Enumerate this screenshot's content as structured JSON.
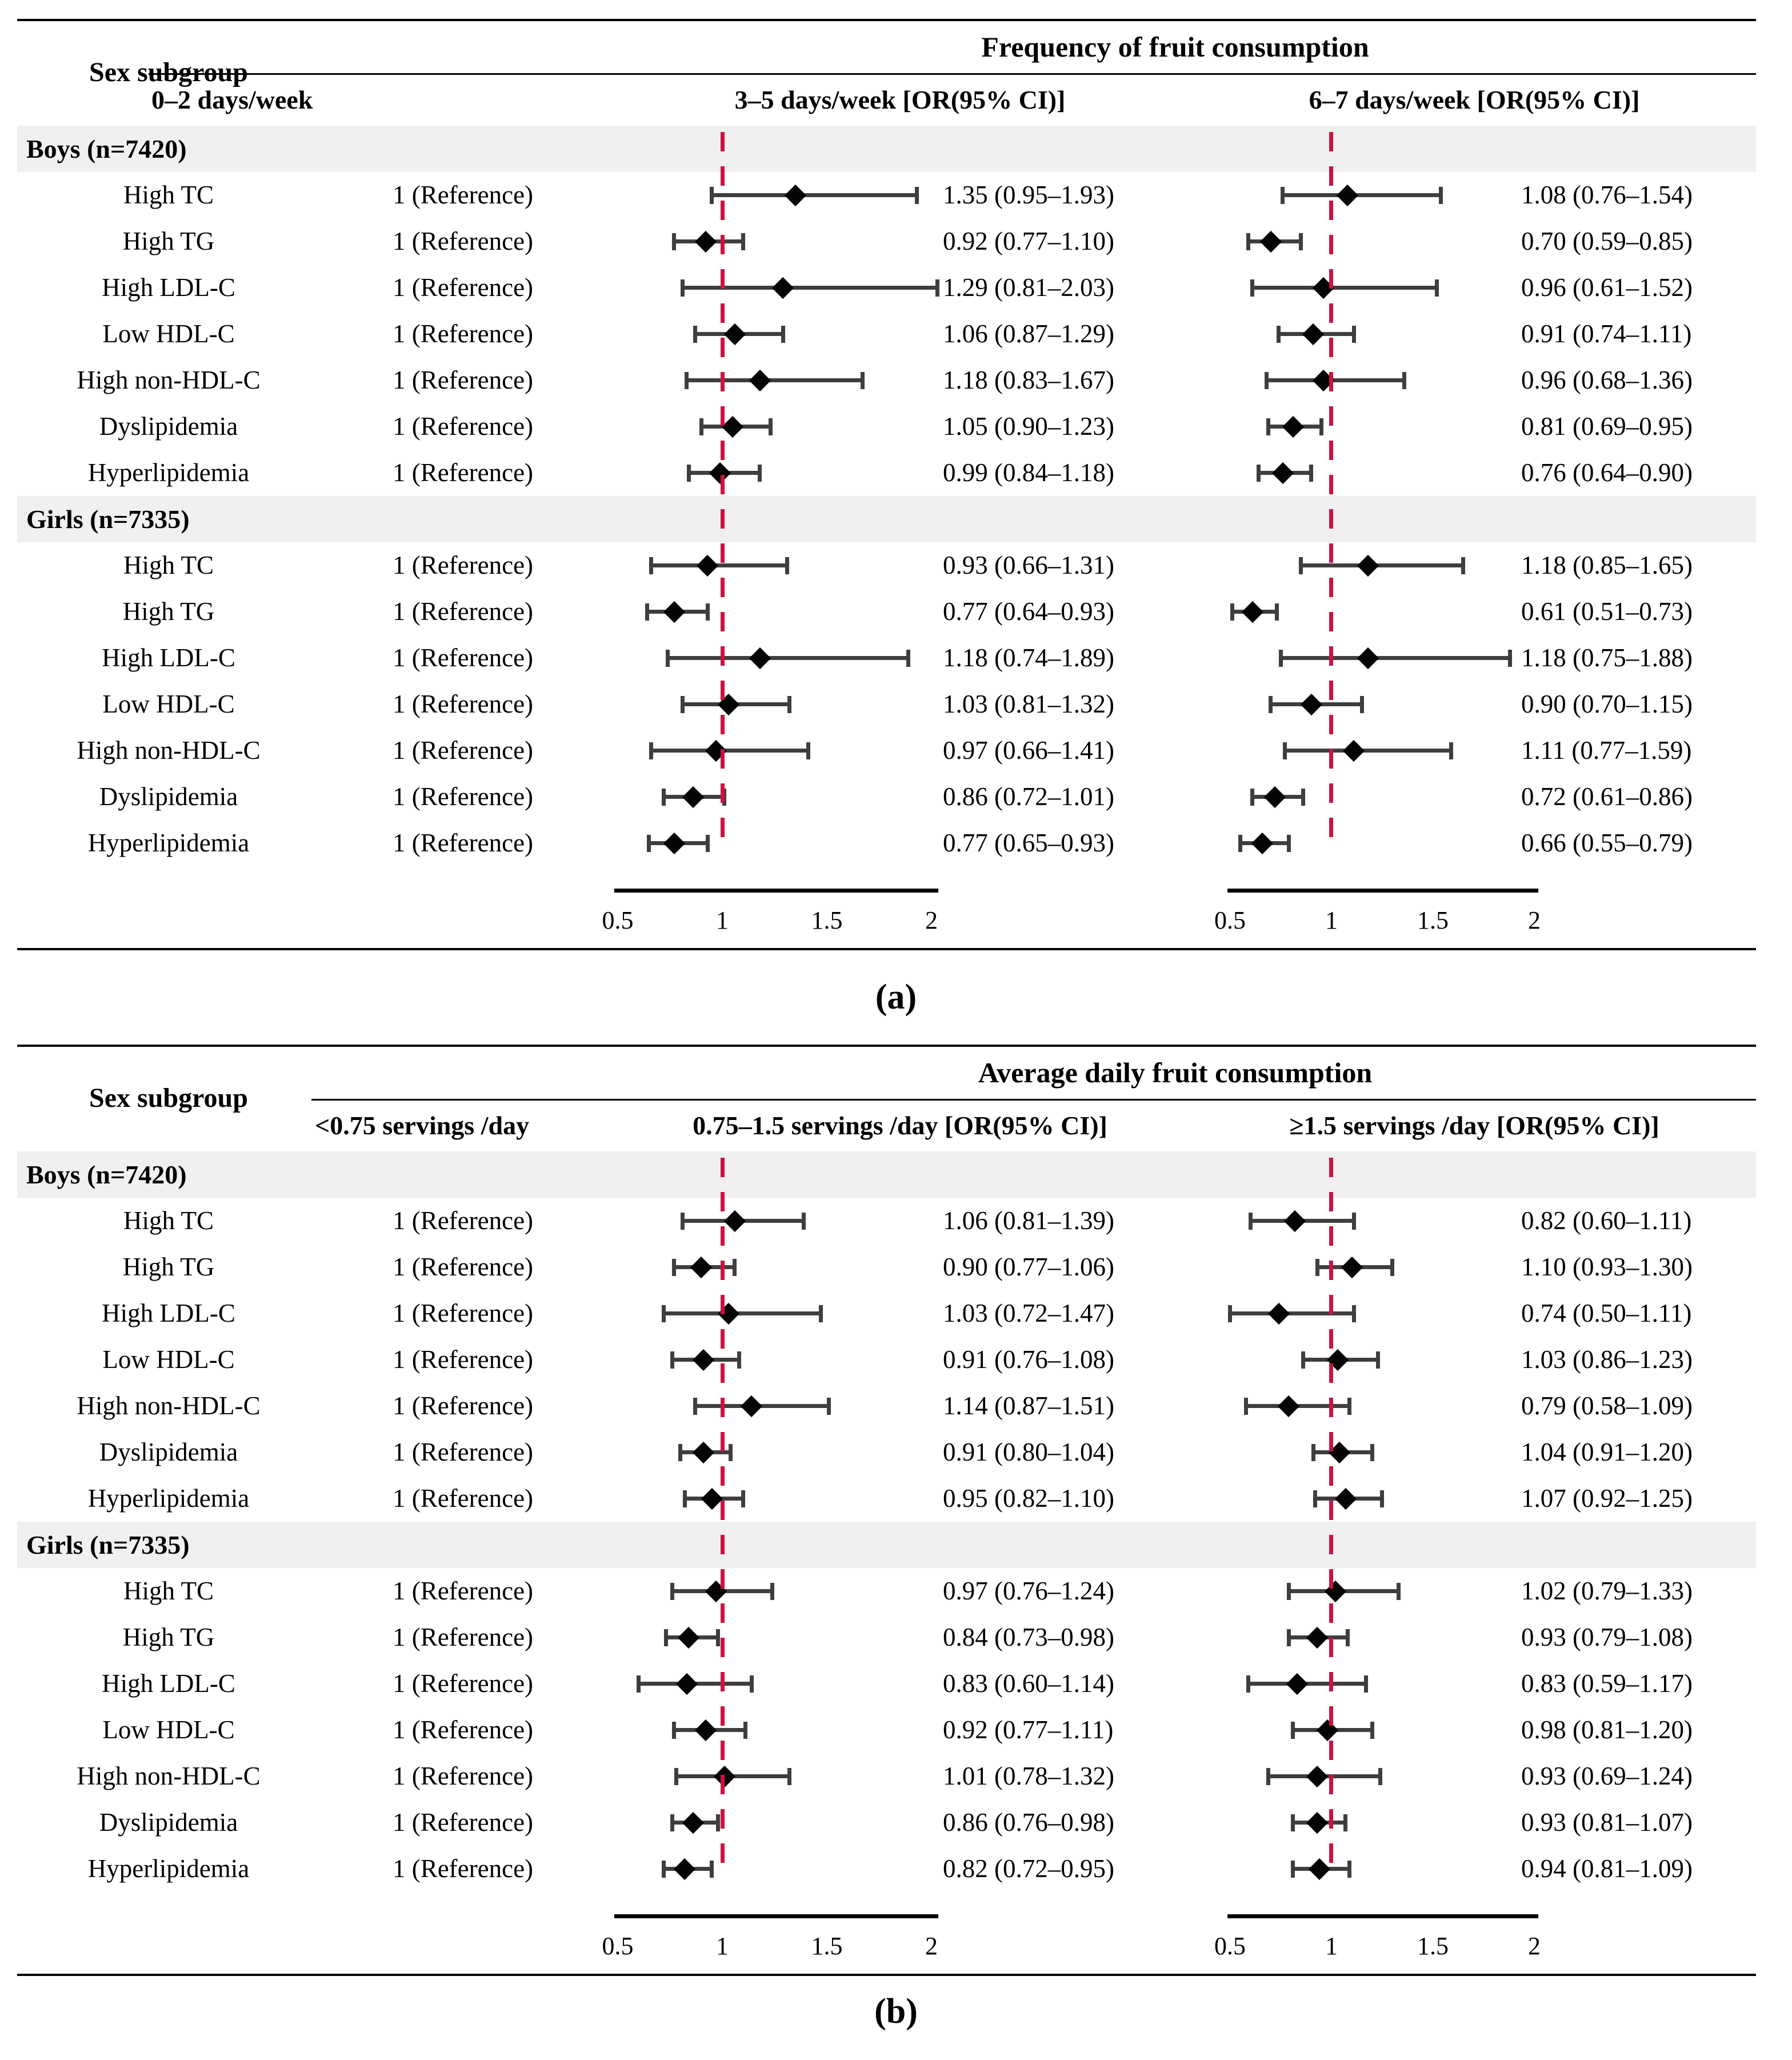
{
  "figure_bg": "#ffffff",
  "colors": {
    "reference_line_red": "#ce1141",
    "ci_bar_gray": "#3e3e3e",
    "diamond_black": "#050505",
    "group_band_gray": "#f0f0f0",
    "text_black": "#000000"
  },
  "captions": {
    "a": "(a)",
    "b": "(b)"
  },
  "chart_data": [
    {
      "type": "scatter",
      "subtype": "forest-plot",
      "panel": "a",
      "caption": "(a)",
      "title": "Frequency of fruit consumption",
      "sex_header": "Sex subgroup",
      "ref_header": "0–2 days/week",
      "col3_header": "3–5 days/week [OR(95% CI)]",
      "col4_header": "6–7 days/week [OR(95% CI)]",
      "ref_value": "1 (Reference)",
      "axis_ticks": [
        "0.5",
        "1",
        "1.5",
        "2"
      ],
      "axis_range": [
        0.5,
        2
      ],
      "reference_line_at": 1,
      "groups": [
        {
          "label": "Boys (n=7420)",
          "rows": [
            {
              "label": "High TC",
              "cells": [
                {
                  "or": 1.35,
                  "lo": 0.95,
                  "hi": 1.93,
                  "text": "1.35 (0.95–1.93)"
                },
                {
                  "or": 1.08,
                  "lo": 0.76,
                  "hi": 1.54,
                  "text": "1.08 (0.76–1.54)"
                }
              ]
            },
            {
              "label": "High TG",
              "cells": [
                {
                  "or": 0.92,
                  "lo": 0.77,
                  "hi": 1.1,
                  "text": "0.92 (0.77–1.10)"
                },
                {
                  "or": 0.7,
                  "lo": 0.59,
                  "hi": 0.85,
                  "text": "0.70 (0.59–0.85)"
                }
              ]
            },
            {
              "label": "High LDL-C",
              "cells": [
                {
                  "or": 1.29,
                  "lo": 0.81,
                  "hi": 2.03,
                  "text": "1.29 (0.81–2.03)"
                },
                {
                  "or": 0.96,
                  "lo": 0.61,
                  "hi": 1.52,
                  "text": "0.96 (0.61–1.52)"
                }
              ]
            },
            {
              "label": "Low HDL-C",
              "cells": [
                {
                  "or": 1.06,
                  "lo": 0.87,
                  "hi": 1.29,
                  "text": "1.06 (0.87–1.29)"
                },
                {
                  "or": 0.91,
                  "lo": 0.74,
                  "hi": 1.11,
                  "text": "0.91 (0.74–1.11)"
                }
              ]
            },
            {
              "label": "High non-HDL-C",
              "cells": [
                {
                  "or": 1.18,
                  "lo": 0.83,
                  "hi": 1.67,
                  "text": "1.18 (0.83–1.67)"
                },
                {
                  "or": 0.96,
                  "lo": 0.68,
                  "hi": 1.36,
                  "text": "0.96 (0.68–1.36)"
                }
              ]
            },
            {
              "label": "Dyslipidemia",
              "cells": [
                {
                  "or": 1.05,
                  "lo": 0.9,
                  "hi": 1.23,
                  "text": "1.05 (0.90–1.23)"
                },
                {
                  "or": 0.81,
                  "lo": 0.69,
                  "hi": 0.95,
                  "text": "0.81 (0.69–0.95)"
                }
              ]
            },
            {
              "label": "Hyperlipidemia",
              "cells": [
                {
                  "or": 0.99,
                  "lo": 0.84,
                  "hi": 1.18,
                  "text": "0.99 (0.84–1.18)"
                },
                {
                  "or": 0.76,
                  "lo": 0.64,
                  "hi": 0.9,
                  "text": "0.76 (0.64–0.90)"
                }
              ]
            }
          ]
        },
        {
          "label": "Girls (n=7335)",
          "rows": [
            {
              "label": "High TC",
              "cells": [
                {
                  "or": 0.93,
                  "lo": 0.66,
                  "hi": 1.31,
                  "text": "0.93 (0.66–1.31)"
                },
                {
                  "or": 1.18,
                  "lo": 0.85,
                  "hi": 1.65,
                  "text": "1.18 (0.85–1.65)"
                }
              ]
            },
            {
              "label": "High TG",
              "cells": [
                {
                  "or": 0.77,
                  "lo": 0.64,
                  "hi": 0.93,
                  "text": "0.77 (0.64–0.93)"
                },
                {
                  "or": 0.61,
                  "lo": 0.51,
                  "hi": 0.73,
                  "text": "0.61 (0.51–0.73)"
                }
              ]
            },
            {
              "label": "High LDL-C",
              "cells": [
                {
                  "or": 1.18,
                  "lo": 0.74,
                  "hi": 1.89,
                  "text": "1.18 (0.74–1.89)"
                },
                {
                  "or": 1.18,
                  "lo": 0.75,
                  "hi": 1.88,
                  "text": "1.18 (0.75–1.88)"
                }
              ]
            },
            {
              "label": "Low HDL-C",
              "cells": [
                {
                  "or": 1.03,
                  "lo": 0.81,
                  "hi": 1.32,
                  "text": "1.03 (0.81–1.32)"
                },
                {
                  "or": 0.9,
                  "lo": 0.7,
                  "hi": 1.15,
                  "text": "0.90 (0.70–1.15)"
                }
              ]
            },
            {
              "label": "High non-HDL-C",
              "cells": [
                {
                  "or": 0.97,
                  "lo": 0.66,
                  "hi": 1.41,
                  "text": "0.97 (0.66–1.41)"
                },
                {
                  "or": 1.11,
                  "lo": 0.77,
                  "hi": 1.59,
                  "text": "1.11 (0.77–1.59)"
                }
              ]
            },
            {
              "label": "Dyslipidemia",
              "cells": [
                {
                  "or": 0.86,
                  "lo": 0.72,
                  "hi": 1.01,
                  "text": "0.86 (0.72–1.01)"
                },
                {
                  "or": 0.72,
                  "lo": 0.61,
                  "hi": 0.86,
                  "text": "0.72 (0.61–0.86)"
                }
              ]
            },
            {
              "label": "Hyperlipidemia",
              "cells": [
                {
                  "or": 0.77,
                  "lo": 0.65,
                  "hi": 0.93,
                  "text": "0.77 (0.65–0.93)"
                },
                {
                  "or": 0.66,
                  "lo": 0.55,
                  "hi": 0.79,
                  "text": "0.66 (0.55–0.79)"
                }
              ]
            }
          ]
        }
      ]
    },
    {
      "type": "scatter",
      "subtype": "forest-plot",
      "panel": "b",
      "caption": "(b)",
      "title": "Average daily fruit consumption",
      "sex_header": "Sex subgroup",
      "ref_header": "<0.75 servings /day",
      "col3_header": "0.75–1.5 servings /day [OR(95% CI)]",
      "col4_header": "≥1.5 servings /day [OR(95% CI)]",
      "ref_value": "1 (Reference)",
      "axis_ticks": [
        "0.5",
        "1",
        "1.5",
        "2"
      ],
      "axis_range": [
        0.5,
        2
      ],
      "reference_line_at": 1,
      "groups": [
        {
          "label": "Boys (n=7420)",
          "rows": [
            {
              "label": "High TC",
              "cells": [
                {
                  "or": 1.06,
                  "lo": 0.81,
                  "hi": 1.39,
                  "text": "1.06 (0.81–1.39)"
                },
                {
                  "or": 0.82,
                  "lo": 0.6,
                  "hi": 1.11,
                  "text": "0.82 (0.60–1.11)"
                }
              ]
            },
            {
              "label": "High TG",
              "cells": [
                {
                  "or": 0.9,
                  "lo": 0.77,
                  "hi": 1.06,
                  "text": "0.90 (0.77–1.06)"
                },
                {
                  "or": 1.1,
                  "lo": 0.93,
                  "hi": 1.3,
                  "text": "1.10 (0.93–1.30)"
                }
              ]
            },
            {
              "label": "High LDL-C",
              "cells": [
                {
                  "or": 1.03,
                  "lo": 0.72,
                  "hi": 1.47,
                  "text": "1.03 (0.72–1.47)"
                },
                {
                  "or": 0.74,
                  "lo": 0.5,
                  "hi": 1.11,
                  "text": "0.74 (0.50–1.11)"
                }
              ]
            },
            {
              "label": "Low HDL-C",
              "cells": [
                {
                  "or": 0.91,
                  "lo": 0.76,
                  "hi": 1.08,
                  "text": "0.91 (0.76–1.08)"
                },
                {
                  "or": 1.03,
                  "lo": 0.86,
                  "hi": 1.23,
                  "text": "1.03 (0.86–1.23)"
                }
              ]
            },
            {
              "label": "High non-HDL-C",
              "cells": [
                {
                  "or": 1.14,
                  "lo": 0.87,
                  "hi": 1.51,
                  "text": "1.14 (0.87–1.51)"
                },
                {
                  "or": 0.79,
                  "lo": 0.58,
                  "hi": 1.09,
                  "text": "0.79 (0.58–1.09)"
                }
              ]
            },
            {
              "label": "Dyslipidemia",
              "cells": [
                {
                  "or": 0.91,
                  "lo": 0.8,
                  "hi": 1.04,
                  "text": "0.91 (0.80–1.04)"
                },
                {
                  "or": 1.04,
                  "lo": 0.91,
                  "hi": 1.2,
                  "text": "1.04 (0.91–1.20)"
                }
              ]
            },
            {
              "label": "Hyperlipidemia",
              "cells": [
                {
                  "or": 0.95,
                  "lo": 0.82,
                  "hi": 1.1,
                  "text": "0.95 (0.82–1.10)"
                },
                {
                  "or": 1.07,
                  "lo": 0.92,
                  "hi": 1.25,
                  "text": "1.07 (0.92–1.25)"
                }
              ]
            }
          ]
        },
        {
          "label": "Girls (n=7335)",
          "rows": [
            {
              "label": "High TC",
              "cells": [
                {
                  "or": 0.97,
                  "lo": 0.76,
                  "hi": 1.24,
                  "text": "0.97 (0.76–1.24)"
                },
                {
                  "or": 1.02,
                  "lo": 0.79,
                  "hi": 1.33,
                  "text": "1.02 (0.79–1.33)"
                }
              ]
            },
            {
              "label": "High TG",
              "cells": [
                {
                  "or": 0.84,
                  "lo": 0.73,
                  "hi": 0.98,
                  "text": "0.84 (0.73–0.98)"
                },
                {
                  "or": 0.93,
                  "lo": 0.79,
                  "hi": 1.08,
                  "text": "0.93 (0.79–1.08)"
                }
              ]
            },
            {
              "label": "High LDL-C",
              "cells": [
                {
                  "or": 0.83,
                  "lo": 0.6,
                  "hi": 1.14,
                  "text": "0.83 (0.60–1.14)"
                },
                {
                  "or": 0.83,
                  "lo": 0.59,
                  "hi": 1.17,
                  "text": "0.83 (0.59–1.17)"
                }
              ]
            },
            {
              "label": "Low HDL-C",
              "cells": [
                {
                  "or": 0.92,
                  "lo": 0.77,
                  "hi": 1.11,
                  "text": "0.92 (0.77–1.11)"
                },
                {
                  "or": 0.98,
                  "lo": 0.81,
                  "hi": 1.2,
                  "text": "0.98 (0.81–1.20)"
                }
              ]
            },
            {
              "label": "High non-HDL-C",
              "cells": [
                {
                  "or": 1.01,
                  "lo": 0.78,
                  "hi": 1.32,
                  "text": "1.01 (0.78–1.32)"
                },
                {
                  "or": 0.93,
                  "lo": 0.69,
                  "hi": 1.24,
                  "text": "0.93 (0.69–1.24)"
                }
              ]
            },
            {
              "label": "Dyslipidemia",
              "cells": [
                {
                  "or": 0.86,
                  "lo": 0.76,
                  "hi": 0.98,
                  "text": "0.86 (0.76–0.98)"
                },
                {
                  "or": 0.93,
                  "lo": 0.81,
                  "hi": 1.07,
                  "text": "0.93 (0.81–1.07)"
                }
              ]
            },
            {
              "label": "Hyperlipidemia",
              "cells": [
                {
                  "or": 0.82,
                  "lo": 0.72,
                  "hi": 0.95,
                  "text": "0.82 (0.72–0.95)"
                },
                {
                  "or": 0.94,
                  "lo": 0.81,
                  "hi": 1.09,
                  "text": "0.94 (0.81–1.09)"
                }
              ]
            }
          ]
        }
      ]
    }
  ]
}
